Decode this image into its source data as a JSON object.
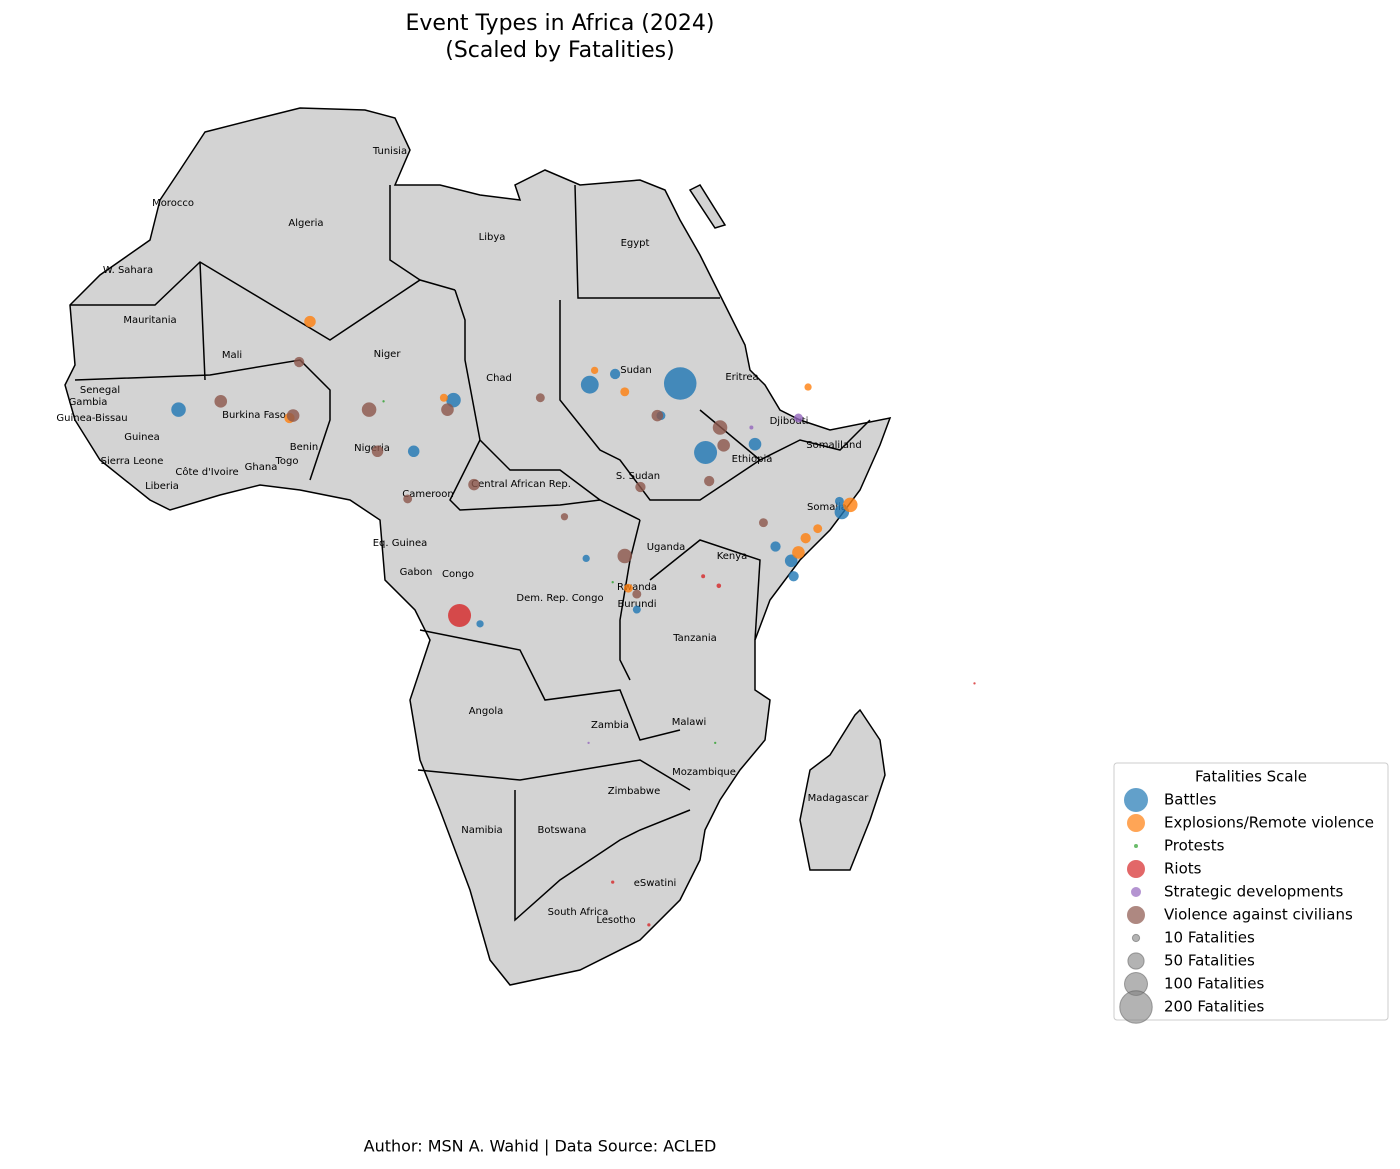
{
  "chart_data": {
    "type": "bubble_map",
    "title": [
      "Event Types in Africa (2024)",
      "(Scaled by Fatalities)"
    ],
    "footer": "Author: MSN A. Wahid | Data Source: ACLED",
    "countries": [
      "Tunisia",
      "Morocco",
      "Algeria",
      "Libya",
      "Egypt",
      "W. Sahara",
      "Mauritania",
      "Mali",
      "Niger",
      "Chad",
      "Sudan",
      "Eritrea",
      "Senegal",
      "Gambia",
      "Guinea-Bissau",
      "Burkina Faso",
      "Djibouti",
      "Guinea",
      "Nigeria",
      "Benin",
      "Somaliland",
      "Sierra Leone",
      "Ghana",
      "Togo",
      "Côte d'Ivoire",
      "Ethiopia",
      "S. Sudan",
      "Liberia",
      "Central African Rep.",
      "Cameroon",
      "Somalia",
      "Eq. Guinea",
      "Uganda",
      "Kenya",
      "Gabon",
      "Congo",
      "Rwanda",
      "Dem. Rep. Congo",
      "Burundi",
      "Tanzania",
      "Angola",
      "Malawi",
      "Zambia",
      "Mozambique",
      "Zimbabwe",
      "Madagascar",
      "Namibia",
      "Botswana",
      "eSwatini",
      "South Africa",
      "Lesotho"
    ],
    "legend_title": "Fatalities Scale",
    "series": [
      {
        "name": "Battles",
        "color": "#1f77b4",
        "lon": [
          33.6,
          35.7,
          26.1,
          14.8,
          -8.0,
          47.0,
          42.8,
          28.2,
          11.5,
          25.8,
          39.8,
          32.0,
          17.0,
          30.0,
          41.5,
          43.0,
          46.8
        ],
        "lat": [
          15.7,
          9.9,
          15.6,
          14.3,
          13.5,
          4.9,
          0.8,
          16.5,
          10.0,
          1.0,
          10.6,
          13.0,
          -4.5,
          -3.3,
          2.0,
          -0.5,
          5.8
        ],
        "fatalities": [
          200,
          100,
          60,
          40,
          40,
          40,
          30,
          20,
          25,
          10,
          30,
          15,
          10,
          12,
          20,
          20,
          15
        ]
      },
      {
        "name": "Explosions/Remote violence",
        "color": "#ff7f0e",
        "lon": [
          2.9,
          47.7,
          43.4,
          44.2,
          1.2,
          29.0,
          29.3,
          14.0,
          26.5,
          44.0,
          45.0
        ],
        "lat": [
          20.9,
          5.5,
          1.5,
          15.4,
          12.8,
          15.0,
          -1.5,
          14.5,
          16.8,
          2.7,
          3.5
        ],
        "fatalities": [
          25,
          40,
          30,
          10,
          20,
          15,
          15,
          12,
          10,
          20,
          15
        ]
      },
      {
        "name": "Protests",
        "color": "#2ca02c",
        "lon": [
          9.0,
          36.5,
          28.0
        ],
        "lat": [
          14.2,
          -14.5,
          -1.0
        ],
        "fatalities": [
          1,
          1,
          1
        ]
      },
      {
        "name": "Riots",
        "color": "#d62728",
        "lon": [
          15.3,
          36.8,
          28.0,
          31.0,
          35.5,
          58.0
        ],
        "lat": [
          -3.8,
          -1.3,
          -26.2,
          -29.8,
          -0.5,
          -9.5
        ],
        "fatalities": [
          100,
          4,
          2,
          2,
          3,
          1
        ]
      },
      {
        "name": "Strategic developments",
        "color": "#9467bd",
        "lon": [
          43.4,
          39.5,
          26.0
        ],
        "lat": [
          12.8,
          12.0,
          -14.5
        ],
        "fatalities": [
          15,
          3,
          1
        ]
      },
      {
        "name": "Violence against civilians",
        "color": "#8c564b",
        "lon": [
          7.8,
          29.0,
          36.9,
          31.7,
          16.5,
          -4.5,
          1.5,
          14.3,
          37.2,
          30.3,
          40.5,
          2.0,
          22.0,
          8.5,
          11.0,
          24.0,
          36.0,
          30.0
        ],
        "lat": [
          13.5,
          1.2,
          12.0,
          13.0,
          7.2,
          14.2,
          13.0,
          13.5,
          10.5,
          7.0,
          4.0,
          17.5,
          14.5,
          10.0,
          6.0,
          4.5,
          7.5,
          -2.0
        ],
        "fatalities": [
          40,
          40,
          40,
          25,
          25,
          30,
          30,
          30,
          30,
          20,
          15,
          20,
          15,
          25,
          15,
          10,
          20,
          15
        ]
      }
    ],
    "size_legend": [
      {
        "value": 10,
        "label": "10 Fatalities"
      },
      {
        "value": 50,
        "label": "50 Fatalities"
      },
      {
        "value": 100,
        "label": "100 Fatalities"
      },
      {
        "value": 200,
        "label": "200 Fatalities"
      }
    ]
  }
}
